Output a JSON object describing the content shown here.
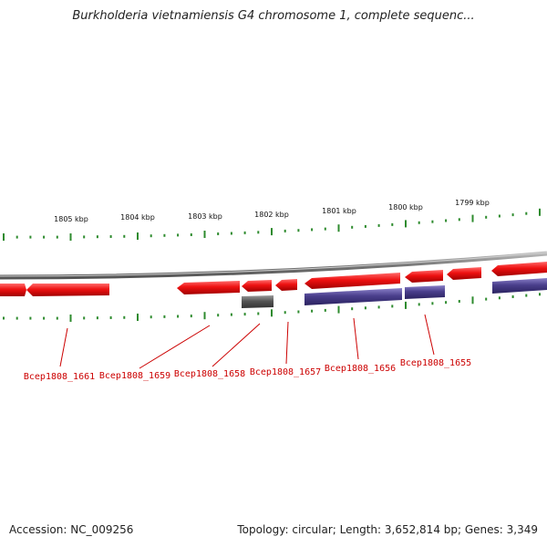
{
  "title": "Burkholderia vietnamiensis G4 chromosome 1, complete sequenc...",
  "footer": {
    "accession": "Accession: NC_009256",
    "summary": "Topology: circular; Length: 3,652,814 bp; Genes: 3,349"
  },
  "scale_labels": [
    "1805 kbp",
    "1804 kbp",
    "1803 kbp",
    "1802 kbp",
    "1801 kbp",
    "1800 kbp",
    "1799 kbp"
  ],
  "gene_labels": [
    "Bcep1808_1661",
    "Bcep1808_1659",
    "Bcep1808_1658",
    "Bcep1808_1657",
    "Bcep1808_1656",
    "Bcep1808_1655"
  ],
  "colors": {
    "gene_forward": "#ee1111",
    "gene_reverse": "#4a3f8c",
    "gene_other": "#555555",
    "backbone": "#777777",
    "tick": "#2e8b2e",
    "label": "#cc0000"
  }
}
